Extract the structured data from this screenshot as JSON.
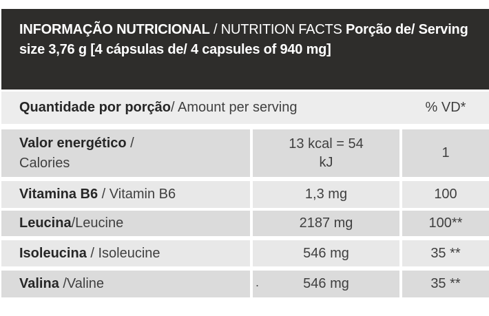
{
  "colors": {
    "header_bg": "#2e2d2b",
    "header_text": "#ffffff",
    "subheader_bg": "#ededed",
    "row_dark": "#dbdbdb",
    "row_light": "#e8e8e8",
    "text_bold": "#262626",
    "text_regular": "#3f3f3f"
  },
  "header": {
    "title_pt": "INFORMAÇÃO NUTRICIONAL",
    "title_en_segment": " / NUTRITION FACTS ",
    "serving_segment": "Porção de/ Serving size 3,76 g [4 cápsulas de/ 4 capsules of 940 mg]"
  },
  "table": {
    "subheader": {
      "label_pt": "Quantidade por porção",
      "label_en_segment": " / Amount per serving",
      "dv_header": "% VD*"
    },
    "rows": [
      {
        "name_pt": "Valor energético",
        "name_en_segment": " /\nCalories",
        "amount": "13 kcal = 54\nkJ",
        "dv": "1"
      },
      {
        "name_pt": "Vitamina B6",
        "name_en_segment": " / Vitamin B6",
        "amount": "1,3 mg",
        "dv": "100"
      },
      {
        "name_pt": "Leucina",
        "name_en_segment": "/Leucine",
        "amount": "2187 mg",
        "dv": "100**"
      },
      {
        "name_pt": "Isoleucina",
        "name_en_segment": " / Isoleucine",
        "amount": "546 mg",
        "dv": "35 **"
      },
      {
        "name_pt": "Valina",
        "name_en_segment": " /Valine",
        "amount": "546 mg",
        "dv": "35 **",
        "stray_mark": "."
      }
    ]
  }
}
